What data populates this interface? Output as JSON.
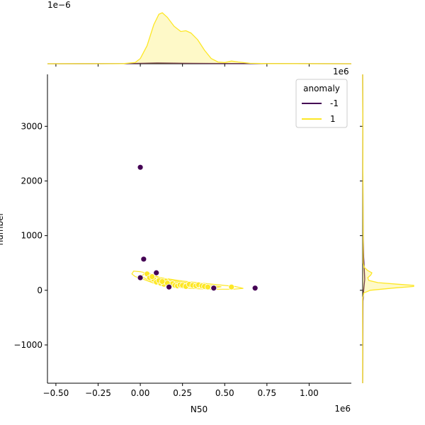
{
  "chart_data": {
    "type": "scatter",
    "title": "",
    "xlabel": "N50",
    "ylabel": "number",
    "x_offset_label": "1e6",
    "y_offset_label": "",
    "top_marginal_offset_label": "1e−6",
    "right_marginal_offset_label": "1e6",
    "xlim": [
      -550000,
      1250000
    ],
    "ylim": [
      -1700,
      3950
    ],
    "x_ticks": [
      -500000,
      -250000,
      0,
      250000,
      500000,
      750000,
      1000000
    ],
    "x_tick_labels": [
      "−0.50",
      "−0.25",
      "0.00",
      "0.25",
      "0.50",
      "0.75",
      "1.00"
    ],
    "y_ticks": [
      -1000,
      0,
      1000,
      2000,
      3000
    ],
    "y_tick_labels": [
      "−1000",
      "0",
      "1000",
      "2000",
      "3000"
    ],
    "grid": false,
    "legend": {
      "title": "anomaly",
      "placement": "top-right",
      "entries": [
        {
          "label": "-1",
          "color": "#440154"
        },
        {
          "label": "1",
          "color": "#fde725"
        }
      ]
    },
    "series": [
      {
        "name": "-1",
        "color": "#440154",
        "points": [
          {
            "x": 0,
            "y": 2250
          },
          {
            "x": 20000,
            "y": 570
          },
          {
            "x": 95000,
            "y": 320
          },
          {
            "x": 0,
            "y": 230
          },
          {
            "x": 170000,
            "y": 60
          },
          {
            "x": 435000,
            "y": 40
          },
          {
            "x": 680000,
            "y": 40
          }
        ]
      },
      {
        "name": "1",
        "color": "#fde725",
        "points": [
          {
            "x": 40000,
            "y": 300
          },
          {
            "x": 55000,
            "y": 230
          },
          {
            "x": 80000,
            "y": 200
          },
          {
            "x": 95000,
            "y": 150
          },
          {
            "x": 120000,
            "y": 130
          },
          {
            "x": 140000,
            "y": 110
          },
          {
            "x": 150000,
            "y": 170
          },
          {
            "x": 170000,
            "y": 100
          },
          {
            "x": 190000,
            "y": 120
          },
          {
            "x": 205000,
            "y": 90
          },
          {
            "x": 220000,
            "y": 80
          },
          {
            "x": 235000,
            "y": 100
          },
          {
            "x": 250000,
            "y": 90
          },
          {
            "x": 270000,
            "y": 70
          },
          {
            "x": 290000,
            "y": 110
          },
          {
            "x": 310000,
            "y": 90
          },
          {
            "x": 330000,
            "y": 80
          },
          {
            "x": 345000,
            "y": 100
          },
          {
            "x": 365000,
            "y": 80
          },
          {
            "x": 380000,
            "y": 70
          },
          {
            "x": 400000,
            "y": 60
          },
          {
            "x": 540000,
            "y": 60
          },
          {
            "x": 70000,
            "y": 250
          },
          {
            "x": 110000,
            "y": 180
          },
          {
            "x": 130000,
            "y": 160
          },
          {
            "x": 160000,
            "y": 130
          }
        ]
      }
    ],
    "kde_contours": [
      {
        "series": "1",
        "color": "#fde725",
        "level": "outer",
        "points": [
          [
            -50000,
            300
          ],
          [
            -40000,
            350
          ],
          [
            0,
            340
          ],
          [
            60000,
            300
          ],
          [
            120000,
            230
          ],
          [
            250000,
            170
          ],
          [
            400000,
            120
          ],
          [
            560000,
            70
          ],
          [
            610000,
            35
          ],
          [
            550000,
            20
          ],
          [
            400000,
            20
          ],
          [
            250000,
            40
          ],
          [
            150000,
            80
          ],
          [
            80000,
            130
          ],
          [
            20000,
            200
          ],
          [
            -30000,
            250
          ]
        ]
      },
      {
        "series": "1",
        "color": "#fde725",
        "level": "middle",
        "points": [
          [
            20000,
            300
          ],
          [
            70000,
            270
          ],
          [
            130000,
            210
          ],
          [
            250000,
            150
          ],
          [
            380000,
            100
          ],
          [
            480000,
            65
          ],
          [
            440000,
            45
          ],
          [
            320000,
            55
          ],
          [
            200000,
            80
          ],
          [
            110000,
            120
          ],
          [
            50000,
            180
          ],
          [
            10000,
            250
          ]
        ]
      },
      {
        "series": "1",
        "color": "#fde725",
        "level": "inner",
        "points": [
          [
            80000,
            220
          ],
          [
            140000,
            180
          ],
          [
            250000,
            130
          ],
          [
            340000,
            95
          ],
          [
            300000,
            75
          ],
          [
            200000,
            95
          ],
          [
            120000,
            140
          ],
          [
            70000,
            190
          ]
        ]
      }
    ],
    "marginal_x": [
      {
        "series": "-1",
        "color": "#440154",
        "fill": false,
        "density": [
          [
            -550000,
            0
          ],
          [
            -100000,
            0.005
          ],
          [
            0,
            0.03
          ],
          [
            100000,
            0.05
          ],
          [
            200000,
            0.04
          ],
          [
            300000,
            0.03
          ],
          [
            500000,
            0.02
          ],
          [
            700000,
            0.015
          ],
          [
            900000,
            0.003
          ],
          [
            1250000,
            0
          ]
        ]
      },
      {
        "series": "1",
        "color": "#fde725",
        "fill": true,
        "density": [
          [
            -550000,
            0
          ],
          [
            -100000,
            0.01
          ],
          [
            -30000,
            0.08
          ],
          [
            0,
            0.35
          ],
          [
            40000,
            1.2
          ],
          [
            80000,
            2.6
          ],
          [
            110000,
            3.3
          ],
          [
            130000,
            3.4
          ],
          [
            160000,
            3.1
          ],
          [
            200000,
            2.5
          ],
          [
            240000,
            2.15
          ],
          [
            270000,
            2.2
          ],
          [
            300000,
            2.05
          ],
          [
            340000,
            1.6
          ],
          [
            380000,
            0.9
          ],
          [
            420000,
            0.35
          ],
          [
            460000,
            0.12
          ],
          [
            500000,
            0.08
          ],
          [
            540000,
            0.18
          ],
          [
            580000,
            0.12
          ],
          [
            650000,
            0.03
          ],
          [
            750000,
            0.01
          ],
          [
            1250000,
            0
          ]
        ]
      }
    ],
    "marginal_y": [
      {
        "series": "-1",
        "color": "#440154",
        "fill": false,
        "density": [
          [
            -1700,
            0
          ],
          [
            -200,
            0.005
          ],
          [
            0,
            0.02
          ],
          [
            200,
            0.04
          ],
          [
            400,
            0.03
          ],
          [
            600,
            0.02
          ],
          [
            1000,
            0.01
          ],
          [
            2000,
            0.005
          ],
          [
            3950,
            0
          ]
        ]
      },
      {
        "series": "1",
        "color": "#fde725",
        "fill": true,
        "density": [
          [
            -1700,
            0
          ],
          [
            -150,
            0
          ],
          [
            -50,
            0.02
          ],
          [
            0,
            0.15
          ],
          [
            40,
            0.6
          ],
          [
            70,
            1.0
          ],
          [
            90,
            1.0
          ],
          [
            110,
            0.7
          ],
          [
            140,
            0.3
          ],
          [
            180,
            0.12
          ],
          [
            230,
            0.1
          ],
          [
            280,
            0.16
          ],
          [
            320,
            0.18
          ],
          [
            360,
            0.1
          ],
          [
            420,
            0.03
          ],
          [
            500,
            0.01
          ],
          [
            3950,
            0
          ]
        ]
      }
    ]
  }
}
